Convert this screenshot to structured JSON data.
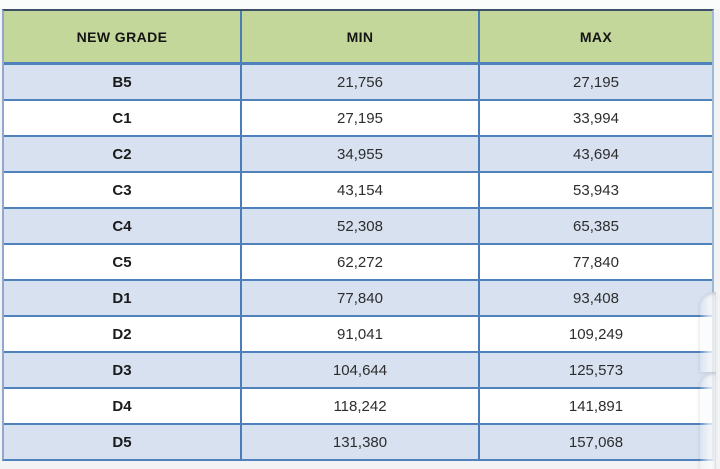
{
  "table": {
    "headers": [
      "NEW GRADE",
      "MIN",
      "MAX"
    ],
    "rows": [
      {
        "grade": "B5",
        "min": "21,756",
        "max": "27,195"
      },
      {
        "grade": "C1",
        "min": "27,195",
        "max": "33,994"
      },
      {
        "grade": "C2",
        "min": "34,955",
        "max": "43,694"
      },
      {
        "grade": "C3",
        "min": "43,154",
        "max": "53,943"
      },
      {
        "grade": "C4",
        "min": "52,308",
        "max": "65,385"
      },
      {
        "grade": "C5",
        "min": "62,272",
        "max": "77,840"
      },
      {
        "grade": "D1",
        "min": "77,840",
        "max": "93,408"
      },
      {
        "grade": "D2",
        "min": "91,041",
        "max": "109,249"
      },
      {
        "grade": "D3",
        "min": "104,644",
        "max": "125,573"
      },
      {
        "grade": "D4",
        "min": "118,242",
        "max": "141,891"
      },
      {
        "grade": "D5",
        "min": "131,380",
        "max": "157,068"
      }
    ]
  },
  "colors": {
    "header_bg": "#c4d79b",
    "alt_row_bg": "#d7e1f0",
    "border_blue": "#4f81bd",
    "outer_top_border": "#3d4f66"
  }
}
